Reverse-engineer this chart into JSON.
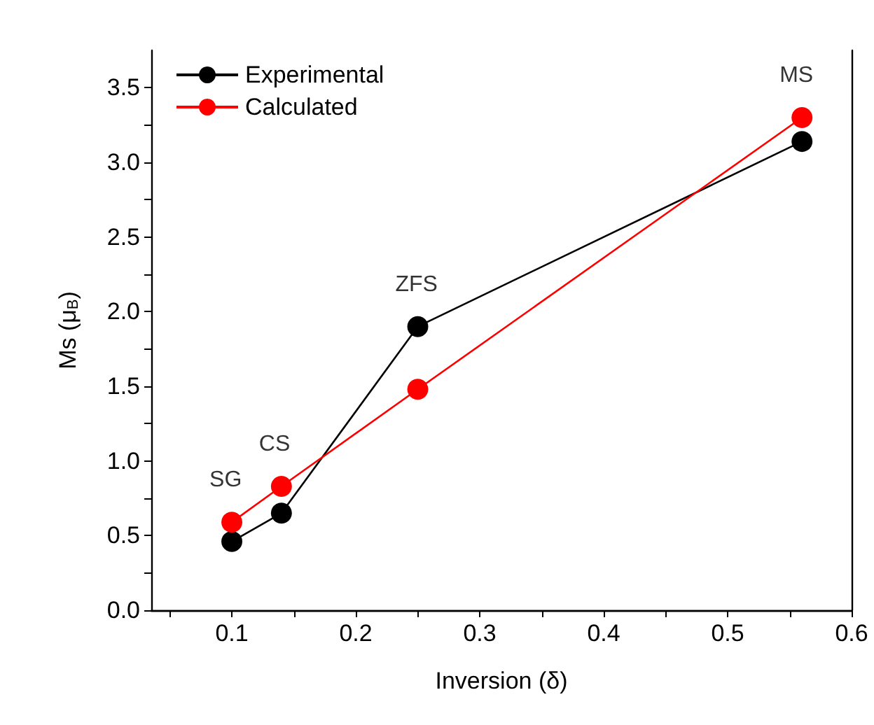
{
  "chart_data": {
    "type": "line",
    "xlabel": "Inversion (δ)",
    "ylabel": "Ms (μ$_{B}$)",
    "x": [
      0.1,
      0.14,
      0.25,
      0.56
    ],
    "series": [
      {
        "name": "Experimental",
        "color": "#000000",
        "values": [
          0.46,
          0.65,
          1.9,
          3.14
        ]
      },
      {
        "name": "Calculated",
        "color": "#ff0000",
        "values": [
          0.59,
          0.83,
          1.48,
          3.3
        ]
      }
    ],
    "xlim": [
      0.035,
      0.6
    ],
    "xticks": [
      {
        "value": 0.05,
        "label": null
      },
      0.1,
      {
        "value": 0.15,
        "label": null
      },
      0.2,
      {
        "value": 0.25,
        "label": null
      },
      0.3,
      {
        "value": 0.35,
        "label": null
      },
      0.4,
      {
        "value": 0.45,
        "label": null
      },
      0.5,
      {
        "value": 0.55,
        "label": null
      },
      0.6
    ],
    "ylim": [
      0,
      3.75
    ],
    "yticks": [
      {
        "value": 0,
        "label": "0.0"
      },
      {
        "value": 0.25,
        "label": null
      },
      {
        "value": 0.5,
        "label": "0.5"
      },
      {
        "value": 0.75,
        "label": null
      },
      {
        "value": 1,
        "label": "1.0"
      },
      {
        "value": 1.25,
        "label": null
      },
      {
        "value": 1.5,
        "label": "1.5"
      },
      {
        "value": 1.75,
        "label": null
      },
      {
        "value": 2,
        "label": "2.0"
      },
      {
        "value": 2.25,
        "label": null
      },
      {
        "value": 2.5,
        "label": "2.5"
      },
      {
        "value": 2.75,
        "label": null
      },
      {
        "value": 3,
        "label": "3.0"
      },
      {
        "value": 3.25,
        "label": null
      },
      {
        "value": 3.5,
        "label": "3.5"
      }
    ],
    "annotations": [
      {
        "text": "SG",
        "x": 0.1,
        "y": 0.59
      },
      {
        "text": "CS",
        "x": 0.14,
        "y": 0.83
      },
      {
        "text": "ZFS",
        "x": 0.25,
        "y": 1.9
      },
      {
        "text": "MS",
        "x": 0.56,
        "y": 3.3
      }
    ],
    "legend": "top left",
    "marker": "circle",
    "line_style": "solid",
    "grid": false
  }
}
